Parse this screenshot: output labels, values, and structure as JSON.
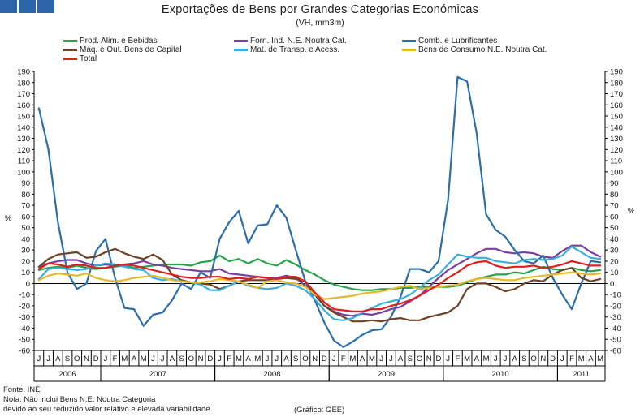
{
  "header": {
    "title": "Exportações de Bens por Grandes Categorias Económicas",
    "subtitle": "(VH, mm3m)"
  },
  "footer": {
    "source": "Fonte: INE",
    "note": "Nota: Não inclui Bens N.E. Noutra Categoria",
    "note2": "devido ao seu reduzido valor relativo e elevada variabilidade",
    "credit": "(Gráfico: GEE)"
  },
  "chart_data": {
    "type": "line",
    "title": "Exportações de Bens por Grandes Categorias Económicas",
    "subtitle": "(VH, mm3m)",
    "xlabel": "",
    "ylabel": "%",
    "ylabel_right": "%",
    "ylim": [
      -60,
      190
    ],
    "ytick_step": 10,
    "grid": false,
    "legend_position": "top",
    "x": [
      "J",
      "J",
      "A",
      "S",
      "O",
      "N",
      "D",
      "J",
      "F",
      "M",
      "A",
      "M",
      "J",
      "J",
      "A",
      "S",
      "O",
      "N",
      "D",
      "J",
      "F",
      "M",
      "A",
      "M",
      "J",
      "J",
      "A",
      "S",
      "O",
      "N",
      "D",
      "J",
      "F",
      "M",
      "A",
      "M",
      "J",
      "J",
      "A",
      "S",
      "O",
      "N",
      "D",
      "J",
      "F",
      "M",
      "A",
      "M",
      "J",
      "J",
      "A",
      "S",
      "O",
      "N",
      "D",
      "J",
      "F",
      "M",
      "A",
      "M"
    ],
    "years": [
      {
        "label": "2006",
        "start": 0,
        "end": 7
      },
      {
        "label": "2007",
        "start": 7,
        "end": 19
      },
      {
        "label": "2008",
        "start": 19,
        "end": 31
      },
      {
        "label": "2009",
        "start": 31,
        "end": 43
      },
      {
        "label": "2010",
        "start": 43,
        "end": 55
      },
      {
        "label": "2011",
        "start": 55,
        "end": 60
      }
    ],
    "series": [
      {
        "name": "Prod. Alim. e Bebidas",
        "color": "#27a14a",
        "values": [
          12,
          14,
          15,
          14,
          16,
          14,
          13,
          14,
          15,
          16,
          14,
          15,
          16,
          17,
          17,
          17,
          16,
          19,
          20,
          25,
          20,
          22,
          18,
          22,
          18,
          16,
          21,
          17,
          12,
          8,
          3,
          -1,
          -3,
          -5,
          -6,
          -6,
          -5,
          -5,
          -4,
          -4,
          -3,
          -3,
          -3,
          -3,
          -2,
          1,
          4,
          6,
          8,
          8,
          10,
          9,
          12,
          15,
          13,
          12,
          14,
          12,
          11,
          12
        ]
      },
      {
        "name": "Forn. Ind. N.E. Noutra Cat.",
        "color": "#7b3fa1",
        "values": [
          15,
          18,
          20,
          21,
          21,
          18,
          16,
          17,
          16,
          17,
          18,
          20,
          17,
          16,
          14,
          13,
          12,
          11,
          11,
          13,
          9,
          8,
          7,
          6,
          5,
          5,
          7,
          5,
          -2,
          -10,
          -20,
          -25,
          -28,
          -29,
          -27,
          -28,
          -26,
          -23,
          -21,
          -16,
          -11,
          -3,
          5,
          12,
          17,
          22,
          27,
          31,
          31,
          28,
          27,
          28,
          27,
          24,
          23,
          29,
          34,
          34,
          28,
          24
        ]
      },
      {
        "name": "Comb. e Lubrificantes",
        "color": "#2a6fad",
        "values": [
          157,
          120,
          55,
          10,
          -5,
          0,
          29,
          40,
          5,
          -22,
          -23,
          -38,
          -28,
          -26,
          -15,
          0,
          -5,
          10,
          5,
          40,
          55,
          65,
          36,
          52,
          53,
          70,
          59,
          30,
          2,
          -15,
          -35,
          -51,
          -57,
          -52,
          -46,
          -42,
          -41,
          -30,
          -12,
          13,
          13,
          10,
          20,
          75,
          185,
          181,
          135,
          62,
          48,
          42,
          30,
          20,
          18,
          25,
          5,
          -10,
          -23,
          0,
          20,
          19
        ]
      },
      {
        "name": "Máq. e Out. Bens de Capital",
        "color": "#6e4226",
        "values": [
          15,
          22,
          26,
          27,
          28,
          23,
          24,
          28,
          31,
          27,
          24,
          22,
          26,
          21,
          8,
          3,
          1,
          0,
          -1,
          -5,
          -2,
          2,
          3,
          3,
          3,
          4,
          5,
          4,
          2,
          -10,
          -20,
          -26,
          -30,
          -34,
          -34,
          -33,
          -34,
          -32,
          -31,
          -33,
          -33,
          -30,
          -28,
          -26,
          -20,
          -5,
          0,
          0,
          -3,
          -7,
          -5,
          0,
          3,
          2,
          8,
          12,
          14,
          5,
          2,
          4
        ]
      },
      {
        "name": "Mat. de Transp. e Acess.",
        "color": "#3aaee0",
        "values": [
          4,
          13,
          14,
          13,
          12,
          13,
          16,
          18,
          17,
          15,
          13,
          12,
          5,
          3,
          4,
          2,
          1,
          -1,
          -6,
          -6,
          -2,
          2,
          -2,
          -4,
          -5,
          -4,
          0,
          -2,
          -6,
          -14,
          -24,
          -32,
          -33,
          -31,
          -26,
          -22,
          -18,
          -16,
          -14,
          -10,
          -4,
          3,
          8,
          17,
          26,
          24,
          23,
          23,
          20,
          19,
          18,
          21,
          22,
          21,
          22,
          25,
          33,
          28,
          23,
          22
        ]
      },
      {
        "name": "Bens de Consumo N.E. Noutra Cat.",
        "color": "#e6b82e",
        "values": [
          3,
          7,
          9,
          8,
          7,
          9,
          5,
          3,
          2,
          3,
          5,
          6,
          7,
          5,
          3,
          2,
          1,
          1,
          2,
          4,
          3,
          2,
          -1,
          -4,
          2,
          3,
          1,
          0,
          -3,
          -10,
          -14,
          -13,
          -12,
          -11,
          -9,
          -8,
          -7,
          -5,
          -3,
          -2,
          -5,
          -4,
          -3,
          -2,
          -1,
          2,
          4,
          5,
          4,
          3,
          3,
          5,
          6,
          7,
          8,
          9,
          10,
          9,
          8,
          9
        ]
      },
      {
        "name": "Total",
        "color": "#e02020",
        "values": [
          13,
          18,
          17,
          15,
          17,
          16,
          14,
          14,
          16,
          17,
          16,
          14,
          12,
          10,
          8,
          6,
          5,
          5,
          6,
          6,
          4,
          5,
          4,
          6,
          5,
          4,
          6,
          6,
          2,
          -8,
          -17,
          -23,
          -24,
          -25,
          -25,
          -23,
          -23,
          -20,
          -18,
          -15,
          -11,
          -6,
          -1,
          5,
          10,
          16,
          19,
          20,
          16,
          14,
          15,
          15,
          16,
          14,
          15,
          17,
          20,
          18,
          16,
          16
        ]
      }
    ]
  }
}
